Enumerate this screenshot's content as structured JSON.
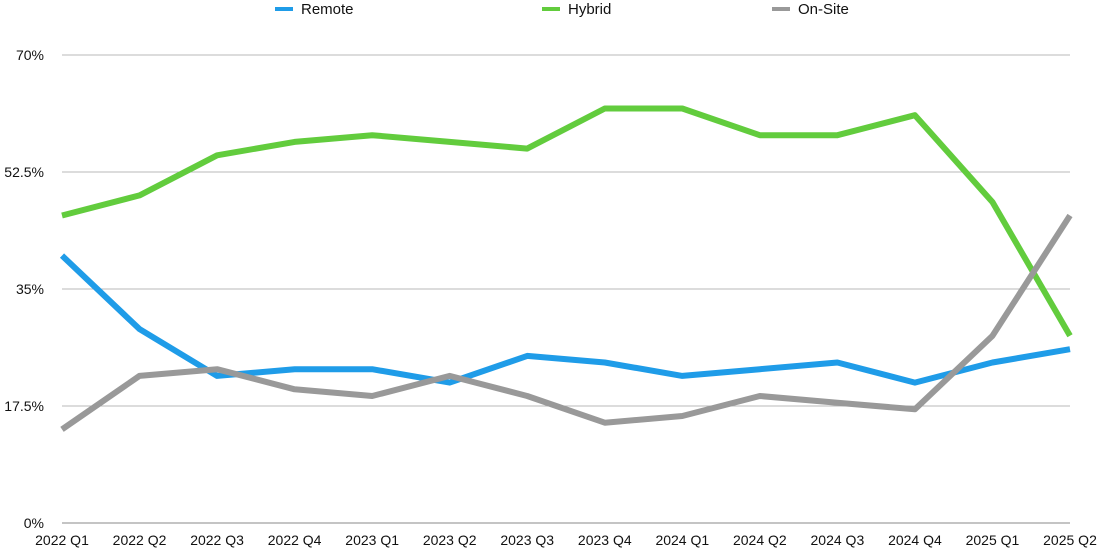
{
  "chart_data": {
    "type": "line",
    "categories": [
      "2022 Q1",
      "2022 Q2",
      "2022 Q3",
      "2022 Q4",
      "2023 Q1",
      "2023 Q2",
      "2023 Q3",
      "2023 Q4",
      "2024 Q1",
      "2024 Q2",
      "2024 Q3",
      "2024 Q4",
      "2025 Q1",
      "2025 Q2"
    ],
    "yticks": [
      "0%",
      "17.5%",
      "35%",
      "52.5%",
      "70%"
    ],
    "ytick_values": [
      0,
      17.5,
      35,
      52.5,
      70
    ],
    "ylim": [
      0,
      70
    ],
    "grid": true,
    "legend_position": "top",
    "series": [
      {
        "name": "Remote",
        "color": "#1f9ce8",
        "values": [
          40,
          29,
          22,
          23,
          23,
          21,
          25,
          24,
          22,
          23,
          24,
          21,
          24,
          26
        ]
      },
      {
        "name": "Hybrid",
        "color": "#62cc3d",
        "values": [
          46,
          49,
          55,
          57,
          58,
          57,
          56,
          62,
          62,
          58,
          58,
          61,
          48,
          28
        ]
      },
      {
        "name": "On-Site",
        "color": "#999999",
        "values": [
          14,
          22,
          23,
          20,
          19,
          22,
          19,
          15,
          16,
          19,
          18,
          17,
          28,
          46
        ]
      }
    ]
  }
}
